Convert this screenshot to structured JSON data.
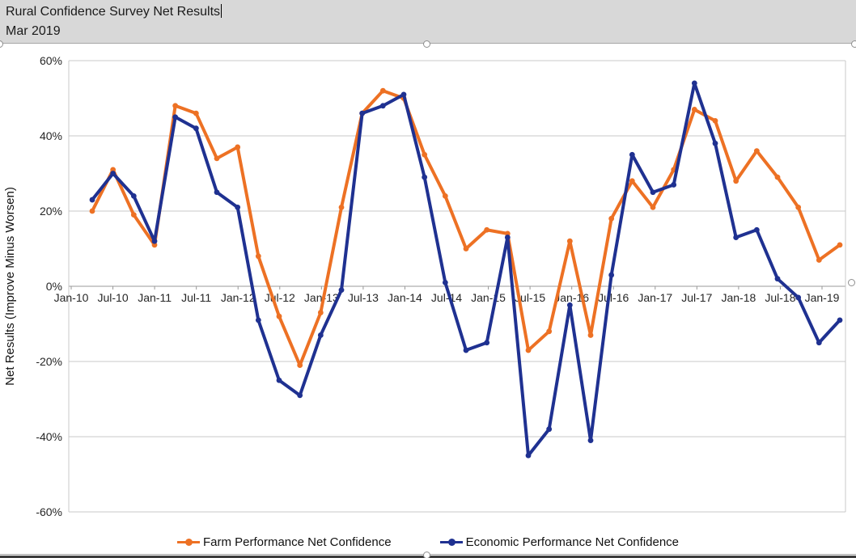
{
  "header": {
    "title_line1": "Rural Confidence Survey Net Results",
    "title_line2": "Mar 2019"
  },
  "chart_data": {
    "type": "line",
    "title": "Rural Confidence Survey Net Results",
    "subtitle": "Mar 2019",
    "ylabel": "Net Results (Improve Minus Worsen)",
    "ylim": [
      -60,
      60
    ],
    "ytick_step": 20,
    "ytick_labels": [
      "60%",
      "40%",
      "20%",
      "0%",
      "-20%",
      "-40%",
      "-60%"
    ],
    "xtick_labels": [
      "Jan-10",
      "Jul-10",
      "Jan-11",
      "Jul-11",
      "Jan-12",
      "Jul-12",
      "Jan-13",
      "Jul-13",
      "Jan-14",
      "Jul-14",
      "Jan-15",
      "Jul-15",
      "Jan-16",
      "Jul-16",
      "Jan-17",
      "Jul-17",
      "Jan-18",
      "Jul-18",
      "Jan-19"
    ],
    "categories": [
      "Mar-10",
      "Jun-10",
      "Sep-10",
      "Dec-10",
      "Mar-11",
      "Jun-11",
      "Sep-11",
      "Dec-11",
      "Mar-12",
      "Jun-12",
      "Sep-12",
      "Dec-12",
      "Mar-13",
      "Jun-13",
      "Sep-13",
      "Dec-13",
      "Mar-14",
      "Jun-14",
      "Sep-14",
      "Dec-14",
      "Mar-15",
      "Jun-15",
      "Sep-15",
      "Dec-15",
      "Mar-16",
      "Jun-16",
      "Sep-16",
      "Dec-16",
      "Mar-17",
      "Jun-17",
      "Sep-17",
      "Dec-17",
      "Mar-18",
      "Jun-18",
      "Sep-18",
      "Dec-18",
      "Mar-19"
    ],
    "series": [
      {
        "name": "Farm Performance Net Confidence",
        "color": "#ED7124",
        "values": [
          20,
          31,
          19,
          11,
          48,
          46,
          34,
          37,
          8,
          -8,
          -21,
          -7,
          21,
          46,
          52,
          50,
          35,
          24,
          10,
          15,
          14,
          -17,
          -12,
          12,
          -13,
          18,
          28,
          21,
          31,
          47,
          44,
          28,
          36,
          29,
          21,
          7,
          11
        ]
      },
      {
        "name": "Economic Performance Net Confidence",
        "color": "#1F3191",
        "values": [
          23,
          30,
          24,
          12,
          45,
          42,
          25,
          21,
          -9,
          -25,
          -29,
          -13,
          -1,
          46,
          48,
          51,
          29,
          1,
          -17,
          -15,
          13,
          -45,
          -38,
          -5,
          -41,
          3,
          35,
          25,
          27,
          54,
          38,
          13,
          15,
          2,
          -3,
          -15,
          -9
        ]
      }
    ],
    "grid": true,
    "legend_position": "bottom",
    "colors": {
      "gridline": "#c9c9c9",
      "zero_axis": "#999999",
      "axis_text": "#262626",
      "title_strip_bg": "#d8d8d8"
    }
  }
}
